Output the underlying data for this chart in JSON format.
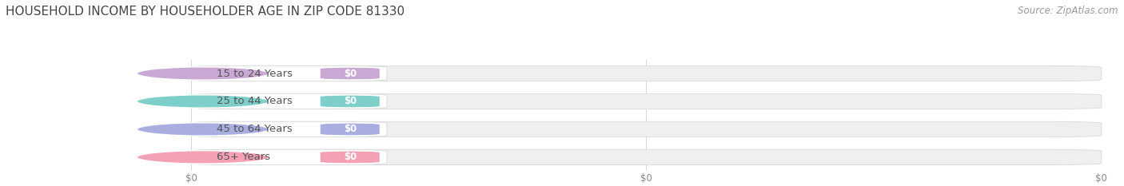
{
  "title": "HOUSEHOLD INCOME BY HOUSEHOLDER AGE IN ZIP CODE 81330",
  "source": "Source: ZipAtlas.com",
  "categories": [
    "15 to 24 Years",
    "25 to 44 Years",
    "45 to 64 Years",
    "65+ Years"
  ],
  "values": [
    0,
    0,
    0,
    0
  ],
  "bar_colors": [
    "#c9a8d4",
    "#7ececa",
    "#a8aee0",
    "#f4a0b5"
  ],
  "bar_bg_color": "#efefef",
  "bar_bg_edge_color": "#dddddd",
  "label_bg_color": "#ffffff",
  "background_color": "#ffffff",
  "title_fontsize": 11,
  "source_fontsize": 8.5,
  "label_fontsize": 9.5,
  "value_fontsize": 8.5,
  "xtick_labels": [
    "$0",
    "$0",
    "$0"
  ],
  "xtick_positions": [
    0.0,
    0.5,
    1.0
  ]
}
